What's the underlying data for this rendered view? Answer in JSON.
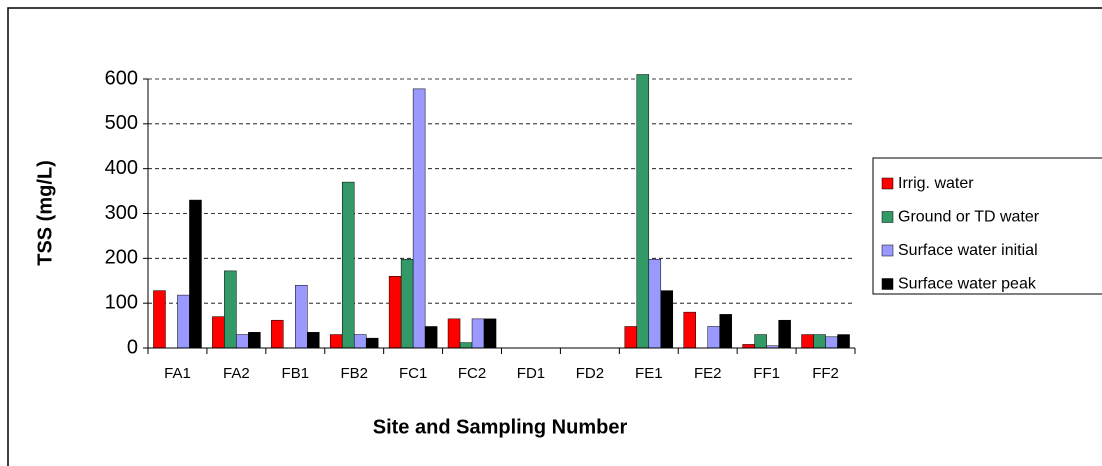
{
  "chart_data": {
    "type": "bar",
    "y_label": "TSS (mg/L)",
    "x_label": "Site and Sampling  Number",
    "categories": [
      "FA1",
      "FA2",
      "FB1",
      "FB2",
      "FC1",
      "FC2",
      "FD1",
      "FD2",
      "FE1",
      "FE2",
      "FF1",
      "FF2"
    ],
    "series": [
      {
        "name": "Irrig. water",
        "color": "#ff0000",
        "values": [
          128,
          70,
          62,
          30,
          160,
          65,
          null,
          null,
          48,
          80,
          8,
          30
        ]
      },
      {
        "name": "Ground or TD water",
        "color": "#339966",
        "values": [
          null,
          172,
          null,
          370,
          198,
          12,
          null,
          null,
          610,
          null,
          30,
          30
        ]
      },
      {
        "name": "Surface water initial",
        "color": "#9999ff",
        "values": [
          118,
          30,
          140,
          30,
          578,
          65,
          null,
          null,
          198,
          48,
          5,
          25
        ]
      },
      {
        "name": "Surface water peak",
        "color": "#000000",
        "values": [
          330,
          35,
          35,
          22,
          48,
          65,
          null,
          null,
          128,
          75,
          62,
          30
        ]
      }
    ],
    "ylim": [
      0,
      600
    ],
    "yticks": [
      0,
      100,
      200,
      300,
      400,
      500,
      600
    ],
    "grid": true,
    "legend": "right"
  }
}
